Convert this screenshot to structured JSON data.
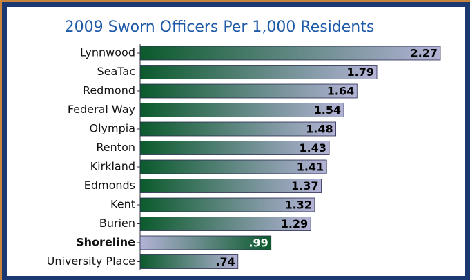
{
  "chart_data": {
    "type": "barh",
    "title": "2009 Sworn Officers Per 1,000 Residents",
    "categories": [
      "Lynnwood",
      "SeaTac",
      "Redmond",
      "Federal Way",
      "Olympia",
      "Renton",
      "Kirkland",
      "Edmonds",
      "Kent",
      "Burien",
      "Shoreline",
      "University Place"
    ],
    "values": [
      2.27,
      1.79,
      1.64,
      1.54,
      1.48,
      1.43,
      1.41,
      1.37,
      1.32,
      1.29,
      0.99,
      0.74
    ],
    "value_labels": [
      "2.27",
      "1.79",
      "1.64",
      "1.54",
      "1.48",
      "1.43",
      "1.41",
      "1.37",
      "1.32",
      "1.29",
      ".99",
      ".74"
    ],
    "colors": [
      "#0b5a2c",
      "#b3b3d6"
    ],
    "highlight_index": 10
  }
}
